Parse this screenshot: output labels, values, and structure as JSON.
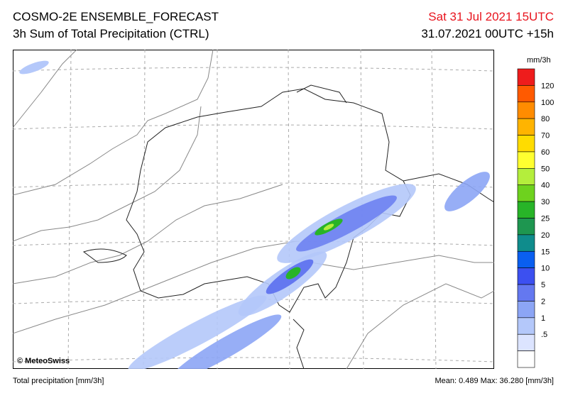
{
  "header": {
    "title": "COSMO-2E ENSEMBLE_FORECAST",
    "subtitle": "3h Sum of Total Precipitation (CTRL)",
    "valid_time": "Sat 31 Jul 2021 15UTC",
    "run": "31.07.2021 00UTC +15h"
  },
  "map": {
    "credit": "© MeteoSwiss"
  },
  "legend": {
    "unit": "mm/3h",
    "colors": [
      "#ee1c1c",
      "#ff5a00",
      "#ff8c00",
      "#ffb400",
      "#ffdc00",
      "#ffff30",
      "#b4ee3c",
      "#6ed21e",
      "#28b428",
      "#1e9650",
      "#0f8c8c",
      "#0a5ff0",
      "#3c50f0",
      "#6478f0",
      "#8ca5f5",
      "#b4c8fa",
      "#dce4ff",
      "#ffffff"
    ],
    "labels": [
      "120",
      "100",
      "80",
      "70",
      "60",
      "50",
      "40",
      "30",
      "25",
      "20",
      "15",
      "10",
      "5",
      "2",
      "1",
      ".5"
    ]
  },
  "footer": {
    "left": "Total precipitation [mm/3h]",
    "right": "Mean:  0.489 Max:  36.280 [mm/3h]"
  }
}
